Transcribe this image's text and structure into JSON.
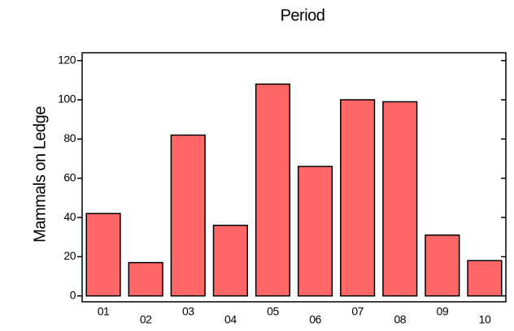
{
  "chart_data": {
    "type": "bar",
    "title": "Period",
    "y_label": "Mammals on Ledge",
    "categories": [
      "01",
      "02",
      "03",
      "04",
      "05",
      "06",
      "07",
      "08",
      "09",
      "10"
    ],
    "values": [
      42,
      17,
      82,
      36,
      108,
      66,
      100,
      99,
      31,
      18
    ],
    "color": "#ff6666",
    "ylim": [
      -3,
      124
    ],
    "yticks": [
      0,
      20,
      40,
      60,
      80,
      100,
      120
    ]
  }
}
